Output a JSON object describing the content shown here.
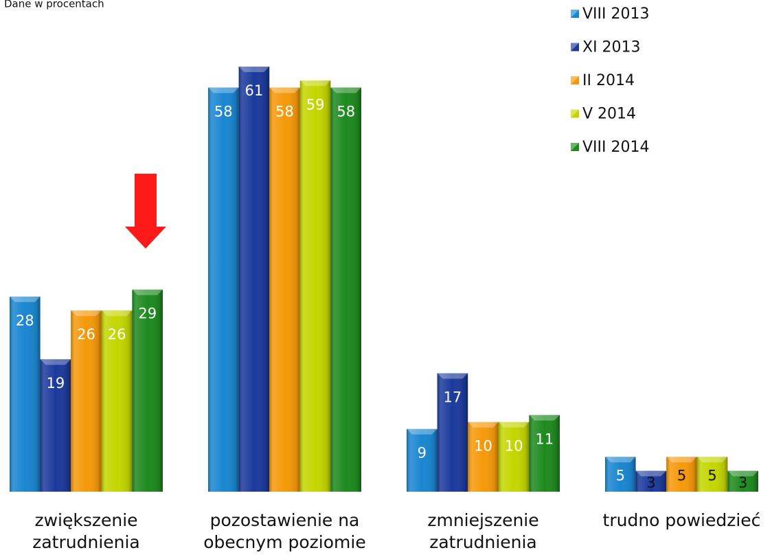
{
  "chart_data": {
    "type": "bar",
    "subtitle": "Dane w procentach",
    "categories": [
      "zwiększenie zatrudnienia",
      "pozostawienie na obecnym poziomie",
      "zmniejszenie zatrudnienia",
      "trudno powiedzieć"
    ],
    "series": [
      {
        "name": "VIII 2013",
        "color": "#1a86d0",
        "values": [
          28,
          58,
          9,
          5
        ]
      },
      {
        "name": "XI 2013",
        "color": "#1c3a9c",
        "values": [
          19,
          61,
          17,
          3
        ]
      },
      {
        "name": "II 2014",
        "color": "#f5990a",
        "values": [
          26,
          58,
          10,
          5
        ]
      },
      {
        "name": "V 2014",
        "color": "#c4d600",
        "values": [
          26,
          59,
          10,
          5
        ]
      },
      {
        "name": "VIII 2014",
        "color": "#1e8a1e",
        "values": [
          29,
          58,
          11,
          3
        ]
      }
    ],
    "legend": "top-right"
  }
}
